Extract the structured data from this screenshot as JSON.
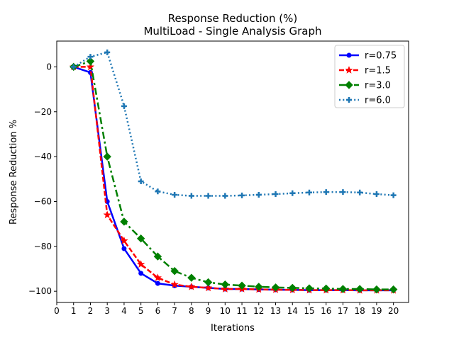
{
  "chart_data": {
    "type": "line",
    "title": "Response Reduction (%)",
    "subtitle": "MultiLoad - Single Analysis Graph",
    "xlabel": "Iterations",
    "ylabel": "Response Reduction %",
    "xlim": [
      0,
      20.9
    ],
    "ylim": [
      -105,
      11.5
    ],
    "xticks": [
      0,
      1,
      2,
      3,
      4,
      5,
      6,
      7,
      8,
      9,
      10,
      11,
      12,
      13,
      14,
      15,
      16,
      17,
      18,
      19,
      20
    ],
    "yticks": [
      0,
      -20,
      -40,
      -60,
      -80,
      -100
    ],
    "grid": false,
    "legend_position": "top-right",
    "x": [
      1,
      2,
      3,
      4,
      5,
      6,
      7,
      8,
      9,
      10,
      11,
      12,
      13,
      14,
      15,
      16,
      17,
      18,
      19,
      20
    ],
    "series": [
      {
        "name": "r=0.75",
        "color": "#0000ff",
        "dash": "solid",
        "marker": "circle",
        "values": [
          0,
          -2.5,
          -60,
          -81,
          -92,
          -96.5,
          -97.5,
          -98,
          -98.5,
          -99,
          -99,
          -99.2,
          -99.3,
          -99.4,
          -99.5,
          -99.5,
          -99.5,
          -99.6,
          -99.6,
          -99.6
        ]
      },
      {
        "name": "r=1.5",
        "color": "#ff0000",
        "dash": "dashed",
        "marker": "star",
        "values": [
          0,
          0,
          -66,
          -77.5,
          -88,
          -94,
          -97,
          -98,
          -98.5,
          -99,
          -99,
          -99.2,
          -99.3,
          -99.4,
          -99.5,
          -99.5,
          -99.5,
          -99.6,
          -99.6,
          -99.6
        ]
      },
      {
        "name": "r=3.0",
        "color": "#008000",
        "dash": "dashdot",
        "marker": "diamond",
        "values": [
          0,
          2.5,
          -40,
          -69,
          -76.5,
          -84.5,
          -91,
          -94,
          -96,
          -97,
          -97.5,
          -98,
          -98.3,
          -98.5,
          -98.7,
          -98.8,
          -99,
          -99,
          -99.2,
          -99.2
        ]
      },
      {
        "name": "r=6.0",
        "color": "#1f77b4",
        "dash": "dotted",
        "marker": "plus",
        "values": [
          0,
          4.5,
          6.5,
          -17.5,
          -51,
          -55.5,
          -57,
          -57.5,
          -57.5,
          -57.5,
          -57.3,
          -57,
          -56.7,
          -56.3,
          -56,
          -55.8,
          -55.8,
          -56,
          -56.7,
          -57.2
        ]
      }
    ]
  }
}
